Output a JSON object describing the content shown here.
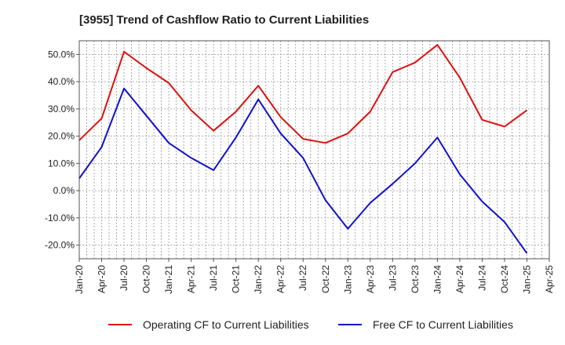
{
  "chart_data": {
    "type": "line",
    "title": "[3955]  Trend of Cashflow Ratio to Current Liabilities",
    "xlabel": "",
    "ylabel": "",
    "x_tick_labels": [
      "Jan-20",
      "Apr-20",
      "Jul-20",
      "Oct-20",
      "Jan-21",
      "Apr-21",
      "Jul-21",
      "Oct-21",
      "Jan-22",
      "Apr-22",
      "Jul-22",
      "Oct-22",
      "Jan-23",
      "Apr-23",
      "Jul-23",
      "Oct-23",
      "Jan-24",
      "Apr-24",
      "Jul-24",
      "Oct-24",
      "Jan-25",
      "Apr-25"
    ],
    "y_tick_values": [
      -20,
      -10,
      0,
      10,
      20,
      30,
      40,
      50
    ],
    "y_tick_labels": [
      "-20.0%",
      "-10.0%",
      "0.0%",
      "10.0%",
      "20.0%",
      "30.0%",
      "40.0%",
      "50.0%"
    ],
    "ylim": [
      -25,
      55
    ],
    "grid": true,
    "legend_position": "bottom",
    "x": [
      "Jan-20",
      "Apr-20",
      "Jul-20",
      "Oct-20",
      "Jan-21",
      "Apr-21",
      "Jul-21",
      "Oct-21",
      "Jan-22",
      "Apr-22",
      "Jul-22",
      "Oct-22",
      "Jan-23",
      "Apr-23",
      "Jul-23",
      "Oct-23",
      "Jan-24",
      "Apr-24",
      "Jul-24",
      "Oct-24",
      "Jan-25"
    ],
    "series": [
      {
        "name": "Operating CF to Current Liabilities",
        "color": "#dd1111",
        "values": [
          18.5,
          26.5,
          51.0,
          45.0,
          39.5,
          29.5,
          22.0,
          29.0,
          38.5,
          27.0,
          19.0,
          17.5,
          21.0,
          29.0,
          43.5,
          47.0,
          53.5,
          41.5,
          26.0,
          23.5,
          29.5
        ]
      },
      {
        "name": "Free CF to Current Liabilities",
        "color": "#1111cc",
        "values": [
          4.5,
          16.0,
          37.5,
          27.5,
          17.5,
          12.0,
          7.5,
          19.5,
          33.5,
          21.0,
          12.0,
          -3.5,
          -14.0,
          -4.5,
          2.5,
          10.0,
          19.5,
          6.0,
          -4.0,
          -11.5,
          -23.0
        ]
      }
    ]
  }
}
